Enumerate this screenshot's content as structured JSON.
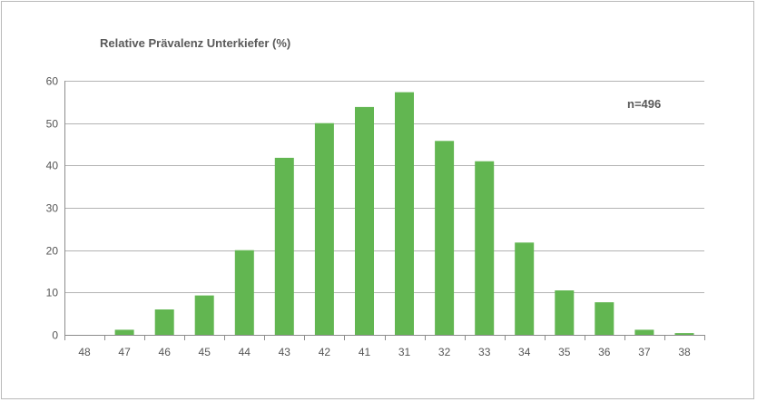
{
  "chart_data": {
    "type": "bar",
    "title": "Relative Prävalenz Unterkiefer (%)",
    "annotation": "n=496",
    "categories": [
      "48",
      "47",
      "46",
      "45",
      "44",
      "43",
      "42",
      "41",
      "31",
      "32",
      "33",
      "34",
      "35",
      "36",
      "37",
      "38"
    ],
    "values": [
      0,
      1.2,
      6,
      9.3,
      20,
      41.8,
      50,
      53.8,
      57.3,
      45.8,
      41,
      21.8,
      10.5,
      7.7,
      1.2,
      0.4
    ],
    "yticks": [
      0,
      10,
      20,
      30,
      40,
      50,
      60
    ],
    "ylim": [
      0,
      60
    ],
    "grid": true,
    "bar_color": "#62b651",
    "grid_color": "#b3b3b3",
    "text_color": "#595959"
  }
}
